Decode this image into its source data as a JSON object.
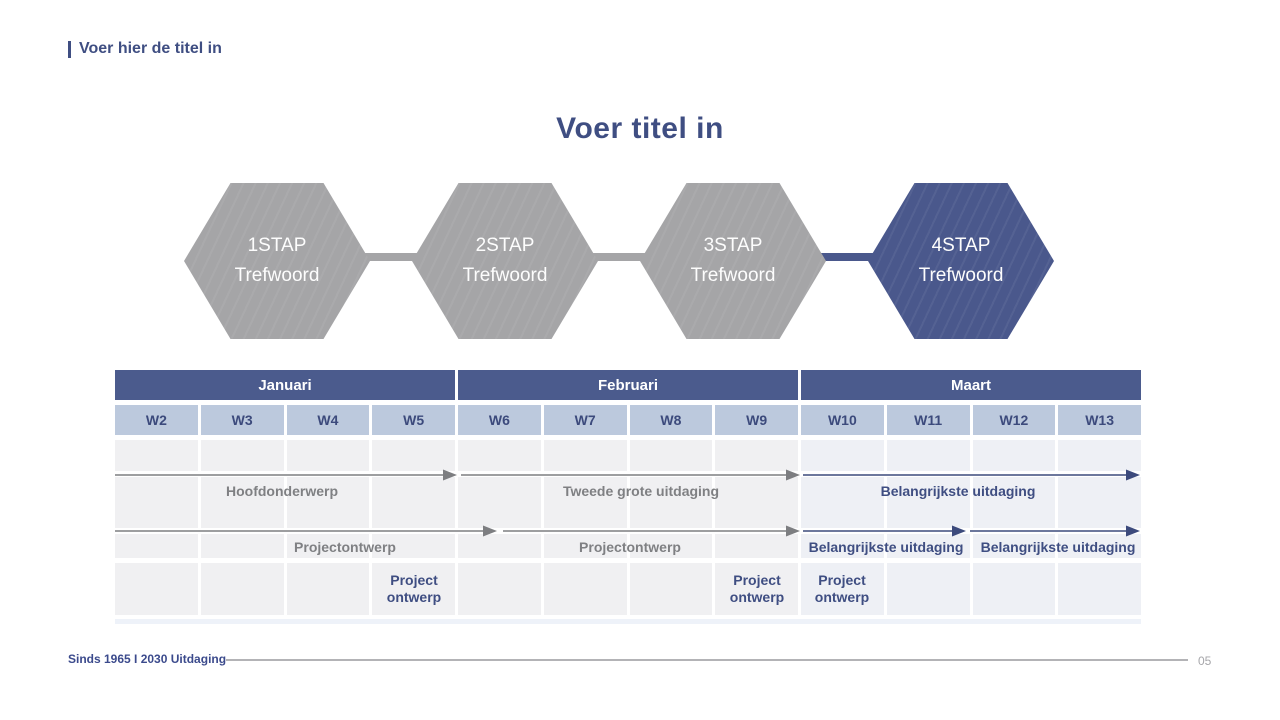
{
  "slide": {
    "header_title": "Voer hier de titel in",
    "title": "Voer titel in",
    "footer_left": "Sinds 1965 I 2030 Uitdaging",
    "page_number": "05"
  },
  "steps": [
    {
      "step": "1STAP",
      "keyword": "Trefwoord"
    },
    {
      "step": "2STAP",
      "keyword": "Trefwoord"
    },
    {
      "step": "3STAP",
      "keyword": "Trefwoord"
    },
    {
      "step": "4STAP",
      "keyword": "Trefwoord"
    }
  ],
  "timeline": {
    "months": [
      {
        "label": "Januari",
        "weeks": [
          "W2",
          "W3",
          "W4",
          "W5"
        ]
      },
      {
        "label": "Februari",
        "weeks": [
          "W6",
          "W7",
          "W8",
          "W9"
        ]
      },
      {
        "label": "Maart",
        "weeks": [
          "W10",
          "W11",
          "W12",
          "W13"
        ]
      }
    ],
    "track1": {
      "segments": [
        {
          "label": "Hoofdonderwerp",
          "tone": "gray"
        },
        {
          "label": "Tweede grote uitdaging",
          "tone": "gray"
        },
        {
          "label": "Belangrijkste uitdaging",
          "tone": "navy"
        }
      ]
    },
    "track2": {
      "segments": [
        {
          "label": "Projectontwerp",
          "tone": "gray"
        },
        {
          "label": "Projectontwerp",
          "tone": "gray"
        },
        {
          "label": "Belangrijkste uitdaging",
          "tone": "navy"
        },
        {
          "label": "Belangrijkste uitdaging",
          "tone": "navy"
        }
      ]
    },
    "milestones": [
      {
        "week": "W5",
        "label": "Project ontwerp"
      },
      {
        "week": "W9",
        "label": "Project ontwerp"
      },
      {
        "week": "W10",
        "label": "Project ontwerp"
      }
    ]
  },
  "colors": {
    "navy": "#3f4e82",
    "navy_dark": "#3c4a7c",
    "hex_gray": "#a5a5a7",
    "hex_navy": "#4a588c",
    "month_bg": "#4b5b8d",
    "week_bg": "#bcc9dd",
    "cell_bg": "#f0f0f2",
    "cell_bg_accent": "#eef0f5",
    "label_gray": "#7f8083",
    "arrow_gray": "#7d7e81",
    "line_gray": "#b3b3b6",
    "page_gray": "#a6a6aa"
  }
}
